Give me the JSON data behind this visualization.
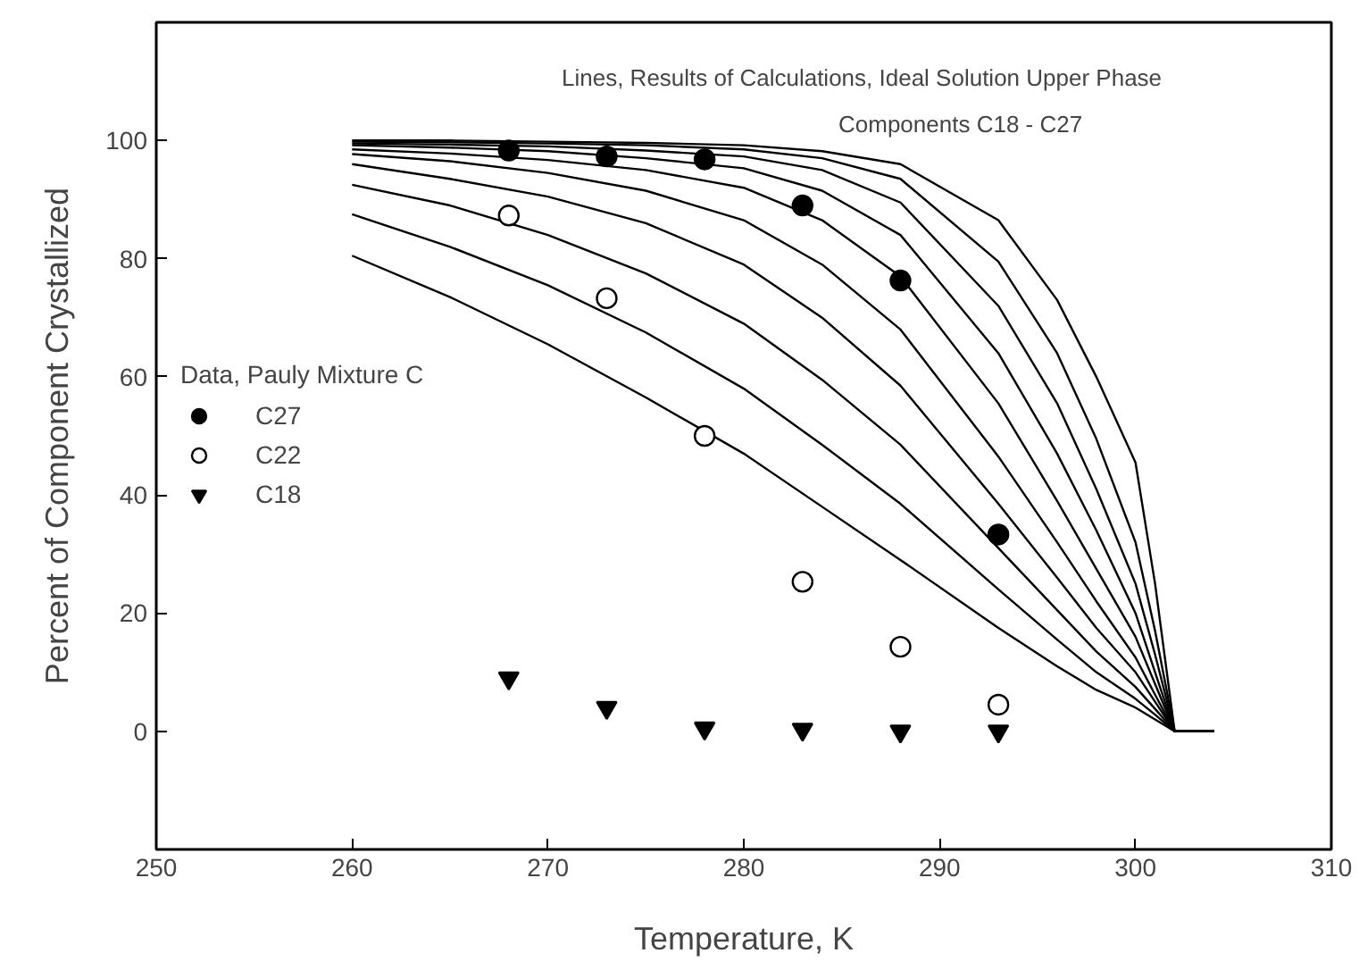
{
  "chart_data": {
    "type": "line",
    "xlabel": "Temperature, K",
    "ylabel": "Percent of Component Crystallized",
    "legend_title": "Data, Pauly Mixture C",
    "legend": "left",
    "grid": false,
    "annotations": [
      "Lines, Results of Calculations, Ideal Solution Upper Phase",
      "Components C18 - C27"
    ],
    "xlim": [
      250,
      310
    ],
    "ylim": [
      -20,
      120
    ],
    "xticks": [
      250,
      260,
      270,
      280,
      290,
      300,
      310
    ],
    "yticks": [
      0,
      20,
      40,
      60,
      80,
      100
    ],
    "x": [
      260,
      265,
      270,
      275,
      280,
      284,
      288,
      293,
      296,
      298,
      300,
      301,
      302,
      304
    ],
    "series": [
      {
        "color": "#000000",
        "values": [
          80.5,
          73.5,
          65.5,
          56.5,
          47,
          38,
          29,
          17.5,
          11,
          7,
          4,
          2,
          0,
          0
        ]
      },
      {
        "color": "#000000",
        "values": [
          87.5,
          82,
          75.5,
          67.5,
          58,
          48.5,
          38.5,
          24,
          15.5,
          10,
          5.5,
          2.8,
          0,
          0
        ]
      },
      {
        "color": "#000000",
        "values": [
          92.5,
          89,
          84,
          77.5,
          69,
          59.5,
          48.5,
          31,
          20.5,
          13.5,
          7.5,
          3.8,
          0,
          0
        ]
      },
      {
        "color": "#000000",
        "values": [
          96,
          93.5,
          90.5,
          86,
          79,
          70,
          58.5,
          38.5,
          26,
          17.5,
          10,
          5,
          0,
          0
        ]
      },
      {
        "color": "#000000",
        "values": [
          97.7,
          96.5,
          94.5,
          91.5,
          86.5,
          79,
          68,
          46.5,
          32,
          22,
          12.5,
          6.2,
          0,
          0
        ]
      },
      {
        "color": "#000000",
        "values": [
          98.5,
          97.8,
          96.7,
          95,
          92,
          86.5,
          77,
          55.5,
          39,
          27.5,
          16,
          8,
          0,
          0
        ]
      },
      {
        "color": "#000000",
        "values": [
          99.2,
          98.8,
          98.2,
          97,
          95.3,
          91.5,
          84,
          64,
          47,
          34,
          20,
          10,
          0,
          0
        ]
      },
      {
        "color": "#000000",
        "values": [
          99.5,
          99.3,
          99,
          98.3,
          97.3,
          95,
          89.5,
          72,
          55.5,
          41,
          25,
          13,
          0,
          0
        ]
      },
      {
        "color": "#000000",
        "values": [
          99.8,
          99.7,
          99.5,
          99.2,
          98.5,
          97,
          93.5,
          79.5,
          64,
          49.5,
          32,
          17,
          0,
          0
        ]
      },
      {
        "color": "#000000",
        "values": [
          100,
          100,
          99.8,
          99.6,
          99.2,
          98.2,
          96,
          86.5,
          73,
          60,
          45.5,
          25,
          0,
          0
        ]
      },
      {
        "type": "scatter",
        "name": "C27",
        "marker": "circle",
        "color": "#000000",
        "x": [
          268,
          273,
          278,
          283,
          288,
          293
        ],
        "values": [
          98.3,
          97.3,
          96.8,
          89,
          76.3,
          33.3
        ]
      },
      {
        "type": "scatter",
        "name": "C22",
        "marker": "circle",
        "color": "#ffffff",
        "x": [
          268,
          273,
          278,
          283,
          288,
          293
        ],
        "values": [
          87.3,
          73.3,
          50,
          25.3,
          14.3,
          4.5
        ]
      },
      {
        "type": "scatter",
        "name": "C18",
        "marker": "triangle",
        "color": "#000000",
        "x": [
          268,
          273,
          278,
          283,
          288,
          293
        ],
        "values": [
          9,
          4,
          0.5,
          0.3,
          0,
          0
        ]
      }
    ]
  }
}
